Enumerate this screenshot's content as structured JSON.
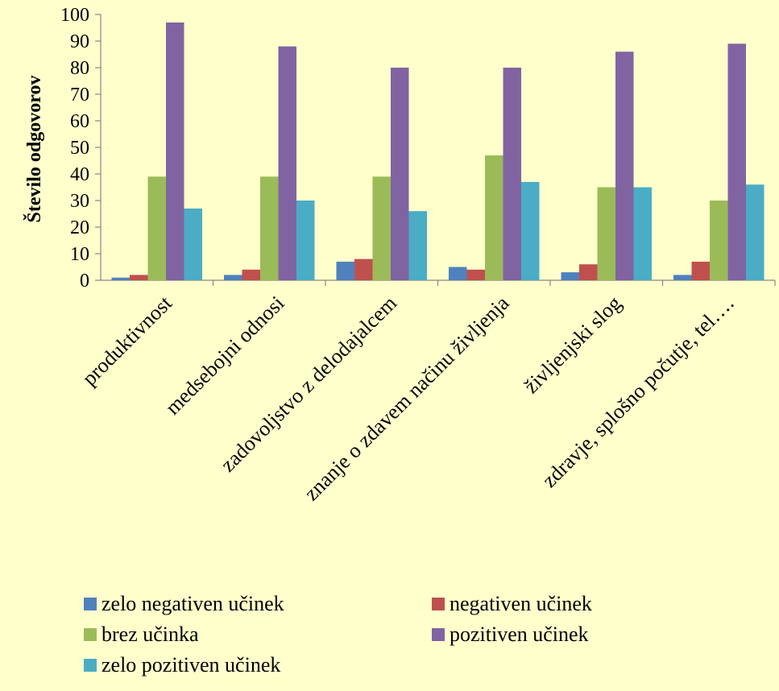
{
  "chart_data": {
    "type": "bar",
    "title": "",
    "xlabel": "",
    "ylabel": "Število odgovorov",
    "ylim": [
      0,
      100
    ],
    "yticks": [
      0,
      10,
      20,
      30,
      40,
      50,
      60,
      70,
      80,
      90,
      100
    ],
    "categories": [
      "produktivnost",
      "medsebojni odnosi",
      "zadovoljstvo z delodajalcem",
      "znanje o zdavem načinu življenja",
      "življenjski slog",
      "zdravje, splošno počutje, tel…."
    ],
    "series": [
      {
        "name": "zelo negativen učinek",
        "color": "#4F81BD",
        "values": [
          1,
          2,
          7,
          5,
          3,
          2
        ]
      },
      {
        "name": "negativen učinek",
        "color": "#C0504D",
        "values": [
          2,
          4,
          8,
          4,
          6,
          7
        ]
      },
      {
        "name": "brez učinka",
        "color": "#9BBB59",
        "values": [
          39,
          39,
          39,
          47,
          35,
          30
        ]
      },
      {
        "name": "pozitiven učinek",
        "color": "#8064A2",
        "values": [
          97,
          88,
          80,
          80,
          86,
          89
        ]
      },
      {
        "name": "zelo pozitiven učinek",
        "color": "#4BACC6",
        "values": [
          27,
          30,
          26,
          37,
          35,
          36
        ]
      }
    ],
    "grid": false,
    "legend_position": "bottom"
  }
}
